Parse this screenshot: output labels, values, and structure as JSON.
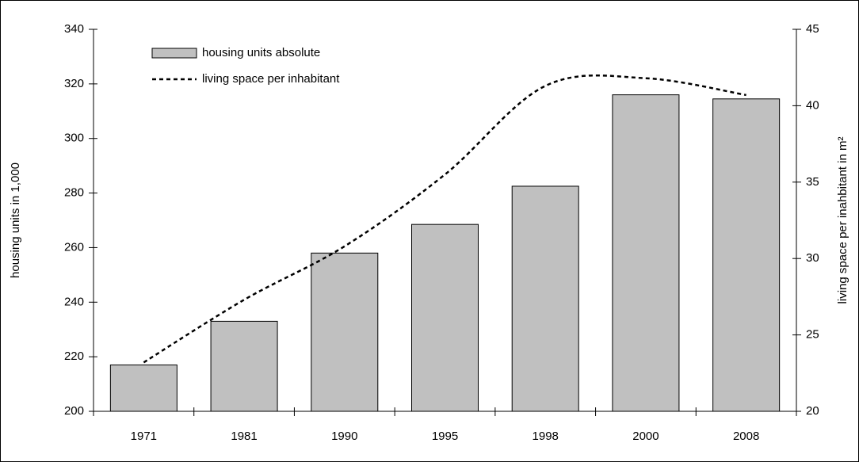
{
  "chart_data": {
    "type": "bar_line",
    "categories": [
      "1971",
      "1981",
      "1990",
      "1995",
      "1998",
      "2000",
      "2008"
    ],
    "series": [
      {
        "name": "housing units absolute",
        "type": "bar",
        "color": "#c0c0c0",
        "values": [
          217,
          233,
          258,
          268.5,
          282.5,
          316,
          314.5
        ]
      },
      {
        "name": "living space per inhabitant",
        "type": "line",
        "axis": "y2",
        "color": "#000000",
        "values": [
          23.2,
          27.3,
          30.8,
          35.5,
          41.3,
          41.8,
          40.7
        ]
      }
    ],
    "ylabel": "housing units in 1,000",
    "y2label": "living space per inahbitant in m²",
    "ylim": [
      200,
      340
    ],
    "yticks": [
      200,
      220,
      240,
      260,
      280,
      300,
      320,
      340
    ],
    "y2lim": [
      20,
      45
    ],
    "y2ticks": [
      20,
      25,
      30,
      35,
      40,
      45
    ],
    "legend": "top-left"
  }
}
